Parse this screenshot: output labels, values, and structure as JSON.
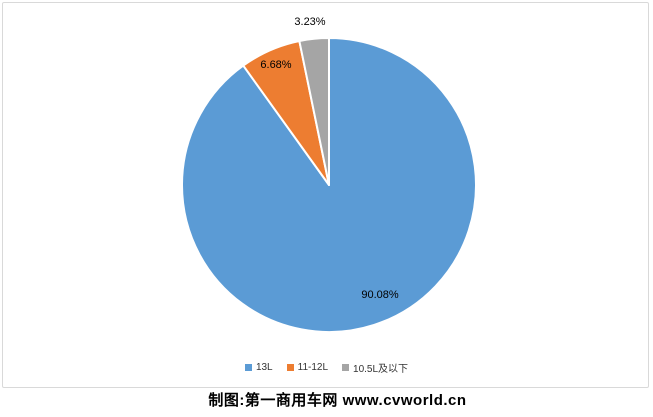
{
  "chart_data": {
    "type": "pie",
    "title": "",
    "categories": [
      "13L",
      "11-12L",
      "10.5L及以下"
    ],
    "values": [
      90.08,
      6.68,
      3.23
    ],
    "labels": [
      "90.08%",
      "6.68%",
      "3.23%"
    ],
    "colors": [
      "#5B9BD5",
      "#ED7D31",
      "#A5A5A5"
    ],
    "start_angle_deg": 0,
    "direction": "clockwise",
    "legend_position": "bottom",
    "label_color": "#000000",
    "slice_border_color": "#FFFFFF"
  },
  "frame": {
    "border_color": "#D9D9D9",
    "background": "#FFFFFF"
  },
  "footer": {
    "credit": "制图:第一商用车网 www.cvworld.cn"
  }
}
